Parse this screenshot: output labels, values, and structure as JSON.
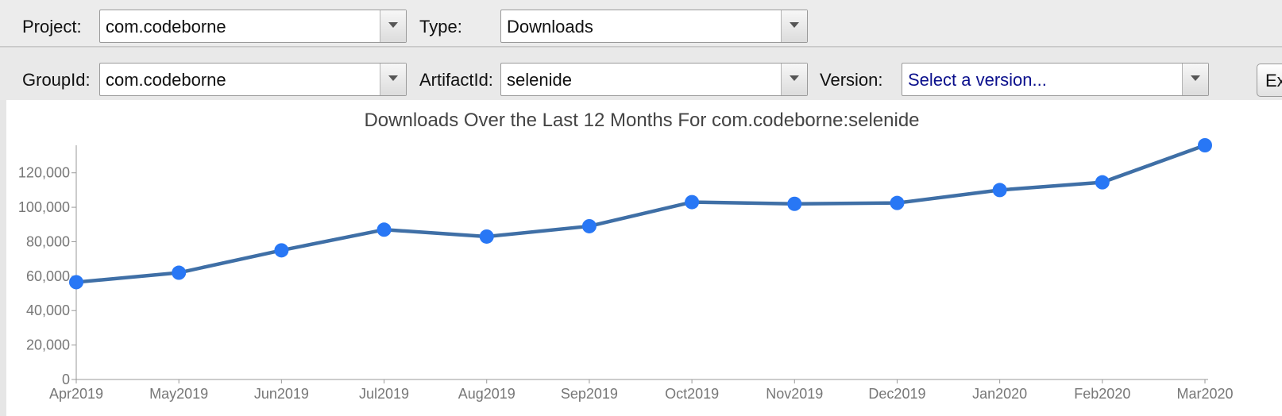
{
  "row1": {
    "project_label": "Project:",
    "project_value": "com.codeborne",
    "type_label": "Type:",
    "type_value": "Downloads"
  },
  "row2": {
    "groupid_label": "GroupId:",
    "groupid_value": "com.codeborne",
    "artifactid_label": "ArtifactId:",
    "artifactid_value": "selenide",
    "version_label": "Version:",
    "version_placeholder": "Select a version...",
    "export_label": "Export"
  },
  "icons": {
    "dropdown": "chevron-down-icon"
  },
  "colors": {
    "line": "#3f6fa6",
    "point": "#2877f5"
  },
  "chart_data": {
    "type": "line",
    "title": "Downloads Over the Last 12 Months For com.codeborne:selenide",
    "xlabel": "",
    "ylabel": "",
    "categories": [
      "Apr2019",
      "May2019",
      "Jun2019",
      "Jul2019",
      "Aug2019",
      "Sep2019",
      "Oct2019",
      "Nov2019",
      "Dec2019",
      "Jan2020",
      "Feb2020",
      "Mar2020"
    ],
    "series": [
      {
        "values": [
          56500,
          62000,
          75000,
          87000,
          83000,
          89000,
          103000,
          102000,
          102500,
          110000,
          114500,
          136000
        ]
      }
    ],
    "yticks": [
      "0",
      "20,000",
      "40,000",
      "60,000",
      "80,000",
      "100,000",
      "120,000"
    ],
    "ytick_values": [
      0,
      20000,
      40000,
      60000,
      80000,
      100000,
      120000
    ],
    "ylim": [
      0,
      136000
    ],
    "grid": false
  }
}
